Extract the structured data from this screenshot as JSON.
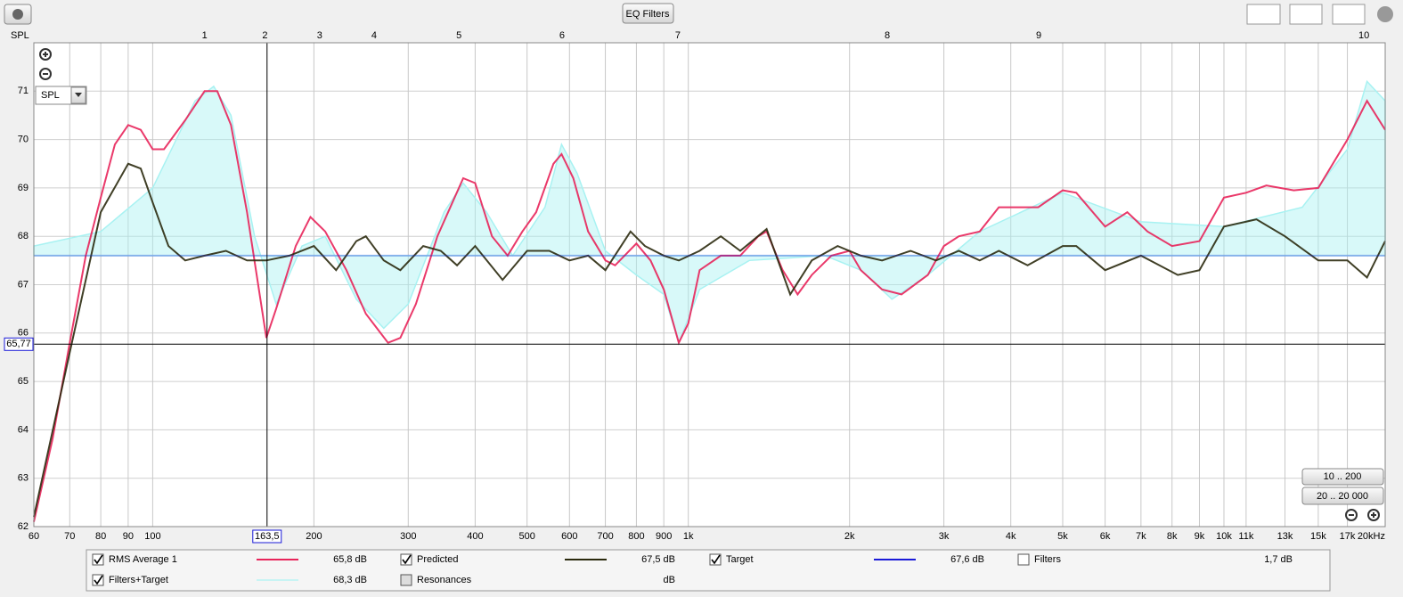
{
  "chart_data": {
    "type": "line",
    "ylabel": "SPL",
    "log_x": true,
    "grid": true,
    "xlim": [
      60,
      20000
    ],
    "ylim": [
      62,
      72
    ],
    "yticks": [
      62,
      63,
      64,
      65,
      66,
      67,
      68,
      69,
      70,
      71
    ],
    "xticks": [
      60,
      70,
      80,
      90,
      100,
      200,
      300,
      400,
      500,
      600,
      700,
      800,
      900,
      {
        "value": 1000,
        "label": "1k"
      },
      {
        "value": 2000,
        "label": "2k"
      },
      {
        "value": 3000,
        "label": "3k"
      },
      {
        "value": 4000,
        "label": "4k"
      },
      {
        "value": 5000,
        "label": "5k"
      },
      {
        "value": 6000,
        "label": "6k"
      },
      {
        "value": 7000,
        "label": "7k"
      },
      {
        "value": 8000,
        "label": "8k"
      },
      {
        "value": 9000,
        "label": "9k"
      },
      {
        "value": 10000,
        "label": "10k"
      },
      {
        "value": 11000,
        "label": "11k"
      },
      {
        "value": 13000,
        "label": "13k"
      },
      {
        "value": 15000,
        "label": "15k"
      },
      {
        "value": 17000,
        "label": "17k"
      },
      {
        "value": 20000,
        "label": "20kHz"
      }
    ],
    "markers": {
      "labels": [
        "1",
        "2",
        "3",
        "4",
        "5",
        "6",
        "7",
        "8",
        "9",
        "10"
      ],
      "x": [
        125,
        162,
        205,
        259,
        373,
        581,
        956,
        2352,
        4511,
        18250
      ]
    },
    "cursor": {
      "x": 163.5,
      "x_label": "163,5",
      "y": 65.77,
      "y_label": "65,77"
    },
    "series": [
      {
        "name": "Filters+Target",
        "color": "#a8f2f2",
        "fill": true,
        "reading": "68,3 dB",
        "checked": true,
        "x": [
          60,
          80,
          100,
          120,
          130,
          140,
          155,
          170,
          190,
          210,
          240,
          270,
          300,
          350,
          380,
          420,
          470,
          540,
          580,
          620,
          700,
          800,
          900,
          960,
          1050,
          1300,
          1800,
          2100,
          2400,
          2800,
          3500,
          5000,
          7000,
          10000,
          14000,
          17000,
          18500,
          20000
        ],
        "values": [
          67.8,
          68.1,
          69.0,
          70.8,
          71.1,
          70.5,
          68.0,
          66.6,
          67.8,
          68.0,
          66.7,
          66.1,
          66.6,
          68.5,
          69.1,
          68.5,
          67.6,
          68.6,
          69.9,
          69.3,
          67.7,
          67.2,
          66.8,
          65.8,
          66.9,
          67.5,
          67.6,
          67.3,
          66.7,
          67.2,
          68.1,
          68.9,
          68.3,
          68.2,
          68.6,
          69.8,
          71.2,
          70.8
        ]
      },
      {
        "name": "RMS Average 1",
        "color": "#e8245a",
        "reading": "65,8 dB",
        "checked": true,
        "x": [
          60,
          65,
          70,
          75,
          80,
          85,
          90,
          95,
          100,
          105,
          115,
          125,
          132,
          140,
          150,
          163,
          170,
          185,
          197,
          210,
          230,
          250,
          275,
          290,
          310,
          340,
          380,
          400,
          430,
          460,
          490,
          520,
          560,
          580,
          610,
          650,
          700,
          730,
          800,
          850,
          900,
          960,
          1000,
          1050,
          1150,
          1250,
          1350,
          1400,
          1500,
          1600,
          1700,
          1850,
          2000,
          2100,
          2300,
          2500,
          2800,
          3000,
          3200,
          3500,
          3800,
          4200,
          4500,
          5000,
          5300,
          6000,
          6600,
          7200,
          8000,
          9000,
          10000,
          11000,
          12000,
          13500,
          15000,
          17000,
          18500,
          20000
        ],
        "values": [
          62.1,
          63.8,
          65.8,
          67.6,
          68.8,
          69.9,
          70.3,
          70.2,
          69.8,
          69.8,
          70.4,
          71.0,
          71.0,
          70.3,
          68.5,
          65.9,
          66.5,
          67.8,
          68.4,
          68.1,
          67.3,
          66.4,
          65.8,
          65.9,
          66.6,
          68.0,
          69.2,
          69.1,
          68.0,
          67.6,
          68.1,
          68.5,
          69.5,
          69.7,
          69.2,
          68.1,
          67.5,
          67.4,
          67.85,
          67.5,
          66.9,
          65.8,
          66.2,
          67.3,
          67.6,
          67.6,
          68.0,
          68.1,
          67.3,
          66.8,
          67.2,
          67.6,
          67.7,
          67.3,
          66.9,
          66.8,
          67.2,
          67.8,
          68.0,
          68.1,
          68.6,
          68.6,
          68.6,
          68.95,
          68.9,
          68.2,
          68.5,
          68.1,
          67.8,
          67.9,
          68.8,
          68.9,
          69.05,
          68.95,
          69.0,
          70.0,
          70.8,
          70.2
        ]
      },
      {
        "name": "Predicted",
        "color": "#2b2a0e",
        "reading": "67,5 dB",
        "checked": true,
        "x": [
          60,
          70,
          80,
          90,
          95,
          100,
          107,
          115,
          125,
          137,
          150,
          163,
          180,
          200,
          220,
          240,
          250,
          270,
          290,
          320,
          345,
          370,
          400,
          450,
          500,
          550,
          600,
          650,
          700,
          780,
          830,
          900,
          960,
          1050,
          1150,
          1250,
          1400,
          1550,
          1700,
          1900,
          2100,
          2300,
          2600,
          2900,
          3200,
          3500,
          3800,
          4300,
          5000,
          5300,
          6000,
          7000,
          8200,
          9000,
          10000,
          11500,
          13000,
          15000,
          17000,
          18500,
          20000
        ],
        "values": [
          62.2,
          65.6,
          68.5,
          69.5,
          69.4,
          68.7,
          67.8,
          67.5,
          67.6,
          67.7,
          67.5,
          67.5,
          67.6,
          67.8,
          67.3,
          67.9,
          68.0,
          67.5,
          67.3,
          67.8,
          67.7,
          67.4,
          67.8,
          67.1,
          67.7,
          67.7,
          67.5,
          67.6,
          67.3,
          68.1,
          67.8,
          67.6,
          67.5,
          67.7,
          68.0,
          67.7,
          68.15,
          66.8,
          67.5,
          67.8,
          67.6,
          67.5,
          67.7,
          67.5,
          67.7,
          67.5,
          67.7,
          67.4,
          67.8,
          67.8,
          67.3,
          67.6,
          67.2,
          67.3,
          68.2,
          68.35,
          68.0,
          67.5,
          67.5,
          67.15,
          67.9
        ]
      },
      {
        "name": "Target",
        "color": "#1a1ad8",
        "reading": "67,6 dB",
        "checked": true,
        "x": [
          60,
          20000
        ],
        "values": [
          67.6,
          67.6
        ]
      },
      {
        "name": "Filters",
        "color": "#20c0d0",
        "reading": "1,7 dB",
        "checked": false
      },
      {
        "name": "Resonances",
        "color": "#bbbbbb",
        "reading": "dB",
        "checked": false,
        "enabled": false
      }
    ]
  },
  "ui": {
    "eq_button": "EQ Filters",
    "range_buttons": [
      "10 .. 200",
      "20 .. 20 000"
    ],
    "dropdown": "SPL"
  }
}
